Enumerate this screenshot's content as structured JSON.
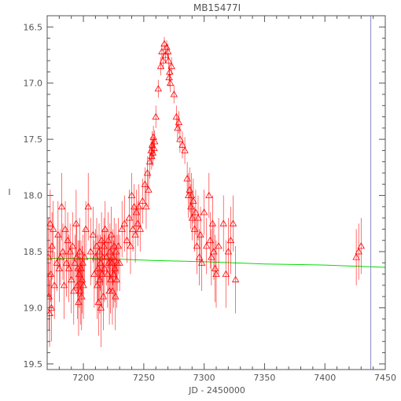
{
  "chart_data": {
    "type": "scatter",
    "title": "MB15477I",
    "xlabel": "JD - 2450000",
    "ylabel": "I",
    "xlim": [
      7170,
      7450
    ],
    "ylim": [
      19.55,
      16.4
    ],
    "y_inverted": true,
    "x_ticks": [
      7200,
      7250,
      7300,
      7350,
      7400,
      7450
    ],
    "y_ticks": [
      16.5,
      17.0,
      17.5,
      18.0,
      18.5,
      19.0,
      19.5
    ],
    "x_tick_labels": [
      "7200",
      "7250",
      "7300",
      "7350",
      "7400",
      "7450"
    ],
    "y_tick_labels": [
      "16.5",
      "17.0",
      "17.5",
      "18.0",
      "18.5",
      "19.0",
      "19.5"
    ],
    "grid": false,
    "colors": {
      "points": "#ff0000",
      "model": "#00dd00",
      "marker_line": "#8888cc",
      "axes": "#555555"
    },
    "series": [
      {
        "marker": "open-triangle",
        "points": [
          [
            7171,
            18.55,
            0.35
          ],
          [
            7171.5,
            18.9,
            0.3
          ],
          [
            7172,
            19.05,
            0.3
          ],
          [
            7172.5,
            18.25,
            0.3
          ],
          [
            7173,
            18.7,
            0.25
          ],
          [
            7173.5,
            19.0,
            0.3
          ],
          [
            7174,
            18.45,
            0.3
          ],
          [
            7175,
            18.3,
            0.25
          ],
          [
            7176,
            18.8,
            0.3
          ],
          [
            7178,
            18.6,
            0.25
          ],
          [
            7179,
            18.35,
            0.3
          ],
          [
            7180,
            18.65,
            0.3
          ],
          [
            7181,
            18.55,
            0.25
          ],
          [
            7182,
            18.1,
            0.3
          ],
          [
            7183,
            18.5,
            0.25
          ],
          [
            7184,
            18.8,
            0.3
          ],
          [
            7185,
            18.3,
            0.25
          ],
          [
            7186,
            18.6,
            0.3
          ],
          [
            7187,
            18.4,
            0.25
          ],
          [
            7188,
            18.65,
            0.3
          ],
          [
            7189,
            18.5,
            0.25
          ],
          [
            7190,
            18.75,
            0.3
          ],
          [
            7191,
            18.45,
            0.3
          ],
          [
            7192,
            18.85,
            0.3
          ],
          [
            7193,
            18.6,
            0.25
          ],
          [
            7194,
            18.25,
            0.3
          ],
          [
            7194.5,
            18.55,
            0.3
          ],
          [
            7195,
            18.8,
            0.3
          ],
          [
            7195.5,
            18.65,
            0.25
          ],
          [
            7196,
            18.95,
            0.3
          ],
          [
            7196.5,
            18.7,
            0.3
          ],
          [
            7197,
            18.5,
            0.3
          ],
          [
            7197.5,
            18.85,
            0.3
          ],
          [
            7198,
            18.65,
            0.25
          ],
          [
            7198.5,
            18.9,
            0.3
          ],
          [
            7199,
            18.75,
            0.3
          ],
          [
            7199.5,
            18.6,
            0.25
          ],
          [
            7200,
            18.8,
            0.3
          ],
          [
            7201,
            18.55,
            0.25
          ],
          [
            7202,
            18.3,
            0.25
          ],
          [
            7204,
            18.1,
            0.3
          ],
          [
            7206,
            18.5,
            0.3
          ],
          [
            7208,
            18.35,
            0.25
          ],
          [
            7209,
            18.7,
            0.3
          ],
          [
            7210,
            18.55,
            0.25
          ],
          [
            7211,
            18.45,
            0.25
          ],
          [
            7211.5,
            18.8,
            0.3
          ],
          [
            7212,
            18.65,
            0.3
          ],
          [
            7212.5,
            18.95,
            0.3
          ],
          [
            7213,
            18.5,
            0.25
          ],
          [
            7213.5,
            18.75,
            0.3
          ],
          [
            7214,
            18.6,
            0.25
          ],
          [
            7214.5,
            19.0,
            0.35
          ],
          [
            7215,
            18.4,
            0.25
          ],
          [
            7215.5,
            18.7,
            0.3
          ],
          [
            7216,
            18.55,
            0.25
          ],
          [
            7216.5,
            18.9,
            0.3
          ],
          [
            7217,
            18.45,
            0.25
          ],
          [
            7217.5,
            18.65,
            0.3
          ],
          [
            7218,
            18.3,
            0.25
          ],
          [
            7219,
            18.55,
            0.25
          ],
          [
            7220,
            18.7,
            0.3
          ],
          [
            7220.5,
            18.4,
            0.25
          ],
          [
            7221,
            18.6,
            0.25
          ],
          [
            7221.5,
            18.85,
            0.3
          ],
          [
            7222,
            18.5,
            0.25
          ],
          [
            7222.5,
            18.75,
            0.3
          ],
          [
            7223,
            18.35,
            0.25
          ],
          [
            7223.5,
            18.6,
            0.25
          ],
          [
            7224,
            18.85,
            0.3
          ],
          [
            7224.5,
            18.55,
            0.25
          ],
          [
            7225,
            18.7,
            0.3
          ],
          [
            7225.5,
            18.45,
            0.25
          ],
          [
            7226,
            18.65,
            0.3
          ],
          [
            7226.5,
            18.9,
            0.3
          ],
          [
            7227,
            18.5,
            0.25
          ],
          [
            7227.5,
            18.75,
            0.25
          ],
          [
            7228,
            18.6,
            0.25
          ],
          [
            7229,
            18.45,
            0.25
          ],
          [
            7230,
            18.6,
            0.25
          ],
          [
            7232,
            18.3,
            0.25
          ],
          [
            7234,
            18.25,
            0.25
          ],
          [
            7236,
            18.4,
            0.2
          ],
          [
            7238,
            18.2,
            0.25
          ],
          [
            7239,
            18.45,
            0.25
          ],
          [
            7240,
            18.0,
            0.2
          ],
          [
            7241,
            18.3,
            0.2
          ],
          [
            7242,
            18.1,
            0.2
          ],
          [
            7243,
            18.35,
            0.25
          ],
          [
            7244,
            18.15,
            0.2
          ],
          [
            7245,
            18.25,
            0.2
          ],
          [
            7246,
            18.1,
            0.2
          ],
          [
            7247,
            18.3,
            0.2
          ],
          [
            7249,
            18.05,
            0.2
          ],
          [
            7251,
            17.9,
            0.15
          ],
          [
            7252,
            18.1,
            0.2
          ],
          [
            7253,
            17.8,
            0.15
          ],
          [
            7254,
            17.95,
            0.15
          ],
          [
            7255,
            17.7,
            0.15
          ],
          [
            7256,
            17.6,
            0.12
          ],
          [
            7256.5,
            17.65,
            0.12
          ],
          [
            7257,
            17.55,
            0.12
          ],
          [
            7257.5,
            17.62,
            0.12
          ],
          [
            7258,
            17.48,
            0.1
          ],
          [
            7258.5,
            17.58,
            0.1
          ],
          [
            7259,
            17.52,
            0.1
          ],
          [
            7260,
            17.3,
            0.1
          ],
          [
            7262,
            17.05,
            0.08
          ],
          [
            7264,
            16.85,
            0.08
          ],
          [
            7265,
            16.72,
            0.07
          ],
          [
            7266,
            16.8,
            0.07
          ],
          [
            7267,
            16.65,
            0.06
          ],
          [
            7268,
            16.75,
            0.07
          ],
          [
            7269,
            16.68,
            0.06
          ],
          [
            7270,
            16.72,
            0.07
          ],
          [
            7270.5,
            16.8,
            0.07
          ],
          [
            7271,
            16.95,
            0.08
          ],
          [
            7271.5,
            16.9,
            0.08
          ],
          [
            7272,
            17.0,
            0.08
          ],
          [
            7273,
            16.85,
            0.08
          ],
          [
            7275,
            17.1,
            0.08
          ],
          [
            7277,
            17.3,
            0.1
          ],
          [
            7278,
            17.4,
            0.1
          ],
          [
            7279,
            17.35,
            0.1
          ],
          [
            7280,
            17.5,
            0.12
          ],
          [
            7282,
            17.55,
            0.12
          ],
          [
            7284,
            17.6,
            0.12
          ],
          [
            7286,
            17.85,
            0.15
          ],
          [
            7287,
            18.0,
            0.2
          ],
          [
            7288,
            17.95,
            0.2
          ],
          [
            7289,
            18.1,
            0.2
          ],
          [
            7289.5,
            18.0,
            0.2
          ],
          [
            7290,
            18.2,
            0.2
          ],
          [
            7291,
            18.05,
            0.2
          ],
          [
            7292,
            18.3,
            0.2
          ],
          [
            7293,
            18.15,
            0.2
          ],
          [
            7294,
            18.45,
            0.25
          ],
          [
            7295,
            18.2,
            0.2
          ],
          [
            7296,
            18.55,
            0.25
          ],
          [
            7297,
            18.35,
            0.25
          ],
          [
            7298,
            18.6,
            0.25
          ],
          [
            7300,
            18.15,
            0.2
          ],
          [
            7302,
            18.45,
            0.25
          ],
          [
            7304,
            18.0,
            0.2
          ],
          [
            7305,
            18.4,
            0.25
          ],
          [
            7306,
            18.55,
            0.25
          ],
          [
            7307,
            18.25,
            0.25
          ],
          [
            7308,
            18.5,
            0.25
          ],
          [
            7309,
            18.65,
            0.3
          ],
          [
            7310,
            18.7,
            0.3
          ],
          [
            7312,
            18.45,
            0.25
          ],
          [
            7316,
            18.25,
            0.25
          ],
          [
            7318,
            18.7,
            0.3
          ],
          [
            7320,
            18.5,
            0.3
          ],
          [
            7322,
            18.4,
            0.3
          ],
          [
            7324,
            18.25,
            0.25
          ],
          [
            7326,
            18.75,
            0.3
          ],
          [
            7426,
            18.55,
            0.25
          ],
          [
            7428,
            18.5,
            0.25
          ],
          [
            7430,
            18.45,
            0.25
          ]
        ]
      },
      {
        "type": "line",
        "x": [
          7170,
          7210,
          7260,
          7300,
          7350,
          7400,
          7450
        ],
        "y": [
          18.56,
          18.56,
          18.58,
          18.59,
          18.61,
          18.62,
          18.64
        ]
      }
    ],
    "vline_x": 7438,
    "legend": "none"
  }
}
